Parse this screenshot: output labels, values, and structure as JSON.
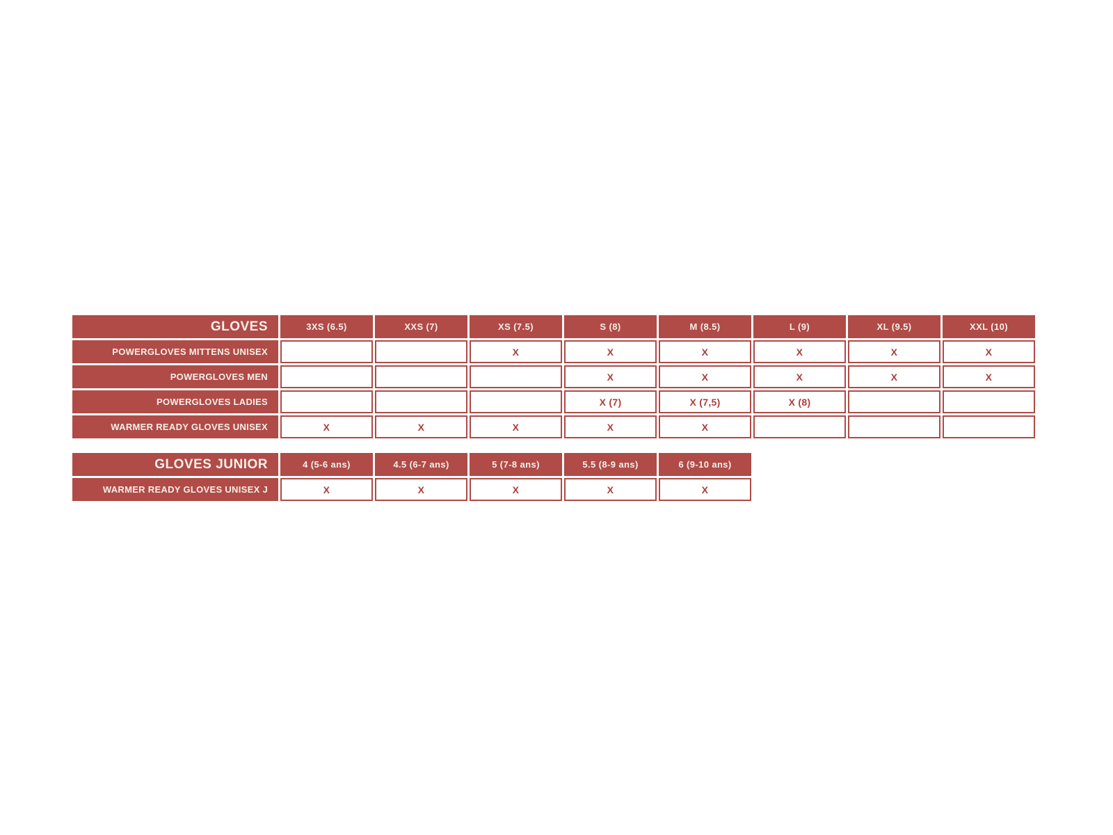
{
  "colors": {
    "brick_red": "#b04b47",
    "cell_border": "#ad4a46",
    "x_mark": "#ab3f3a",
    "label_text": "#f6f0ea",
    "page_background": "#ffffff"
  },
  "chart_data": [
    {
      "type": "table",
      "title": "GLOVES",
      "columns": [
        "3XS (6.5)",
        "XXS (7)",
        "XS (7.5)",
        "S (8)",
        "M (8.5)",
        "L (9)",
        "XL (9.5)",
        "XXL (10)"
      ],
      "rows": [
        {
          "label": "POWERGLOVES MITTENS UNISEX",
          "cells": [
            "",
            "",
            "X",
            "X",
            "X",
            "X",
            "X",
            "X"
          ]
        },
        {
          "label": "POWERGLOVES MEN",
          "cells": [
            "",
            "",
            "",
            "X",
            "X",
            "X",
            "X",
            "X"
          ]
        },
        {
          "label": "POWERGLOVES LADIES",
          "cells": [
            "",
            "",
            "",
            "X (7)",
            "X (7,5)",
            "X (8)",
            "",
            ""
          ]
        },
        {
          "label": "WARMER READY GLOVES UNISEX",
          "cells": [
            "X",
            "X",
            "X",
            "X",
            "X",
            "",
            "",
            ""
          ]
        }
      ]
    },
    {
      "type": "table",
      "title": "GLOVES JUNIOR",
      "columns": [
        "4 (5-6 ans)",
        "4.5 (6-7 ans)",
        "5 (7-8 ans)",
        "5.5 (8-9 ans)",
        "6 (9-10 ans)"
      ],
      "rows": [
        {
          "label": "WARMER READY GLOVES UNISEX J",
          "cells": [
            "X",
            "X",
            "X",
            "X",
            "X"
          ]
        }
      ]
    }
  ]
}
